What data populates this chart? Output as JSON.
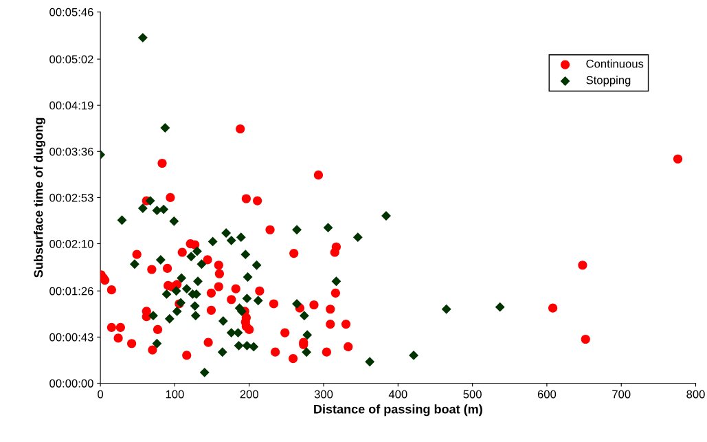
{
  "chart_data": {
    "type": "scatter",
    "xlabel": "Distance of passing boat (m)",
    "ylabel": "Subsurface time of dugong",
    "xlim": [
      0,
      800
    ],
    "xticks": [
      0,
      100,
      200,
      300,
      400,
      500,
      600,
      700,
      800
    ],
    "ylim": [
      0,
      346
    ],
    "yticks": [
      {
        "value": 0,
        "label": "00:00:00"
      },
      {
        "value": 43,
        "label": "00:00:43"
      },
      {
        "value": 86,
        "label": "00:01:26"
      },
      {
        "value": 130,
        "label": "00:02:10"
      },
      {
        "value": 173,
        "label": "00:02:53"
      },
      {
        "value": 216,
        "label": "00:03:36"
      },
      {
        "value": 259,
        "label": "00:04:19"
      },
      {
        "value": 302,
        "label": "00:05:02"
      },
      {
        "value": 346,
        "label": "00:05:46"
      }
    ],
    "grid": false,
    "legend": "top right",
    "series": [
      {
        "name": "Continuous",
        "color": "#ff0000",
        "marker": "circle",
        "x": [
          1,
          4,
          6,
          15,
          15,
          27,
          24,
          42,
          49,
          62,
          62,
          69,
          70,
          77,
          90,
          91,
          94,
          96,
          83,
          62,
          110,
          103,
          106,
          116,
          121,
          127,
          144,
          149,
          159,
          160,
          145,
          159,
          149,
          176,
          182,
          194,
          195,
          196,
          196,
          200,
          188,
          196,
          211,
          214,
          228,
          233,
          235,
          248,
          259,
          260,
          268,
          273,
          273,
          287,
          293,
          304,
          309,
          309,
          315,
          317,
          316,
          330,
          333,
          608,
          648,
          652,
          776
        ],
        "values": [
          101,
          98,
          96,
          87,
          52,
          52,
          42,
          37,
          120,
          62,
          67,
          106,
          31,
          50,
          107,
          91,
          173,
          90,
          205,
          170,
          122,
          92,
          74,
          26,
          130,
          129,
          115,
          84,
          110,
          102,
          38,
          90,
          68,
          78,
          88,
          67,
          57,
          61,
          53,
          50,
          237,
          172,
          170,
          86,
          143,
          74,
          29,
          47,
          23,
          121,
          70,
          38,
          36,
          73,
          194,
          29,
          69,
          55,
          122,
          127,
          84,
          55,
          34,
          70,
          110,
          41,
          209
        ]
      },
      {
        "name": "Stopping",
        "color": "#003300",
        "marker": "diamond",
        "x": [
          57,
          0,
          87,
          67,
          57,
          76,
          85,
          29,
          99,
          46,
          81,
          122,
          130,
          136,
          151,
          169,
          176,
          189,
          195,
          210,
          198,
          109,
          131,
          89,
          102,
          116,
          124,
          129,
          108,
          127,
          71,
          103,
          93,
          128,
          76,
          165,
          176,
          164,
          140,
          197,
          212,
          187,
          190,
          185,
          186,
          197,
          206,
          264,
          274,
          278,
          277,
          317,
          346,
          264,
          306,
          384,
          362,
          421,
          465,
          537
        ],
        "values": [
          322,
          213,
          238,
          170,
          163,
          161,
          162,
          152,
          151,
          111,
          115,
          118,
          123,
          111,
          132,
          140,
          133,
          136,
          120,
          110,
          99,
          98,
          95,
          83,
          86,
          88,
          83,
          83,
          75,
          72,
          63,
          67,
          60,
          63,
          37,
          58,
          47,
          29,
          10,
          79,
          77,
          70,
          67,
          47,
          35,
          35,
          34,
          74,
          63,
          45,
          29,
          95,
          136,
          143,
          145,
          156,
          20,
          26,
          69,
          71
        ]
      }
    ]
  }
}
